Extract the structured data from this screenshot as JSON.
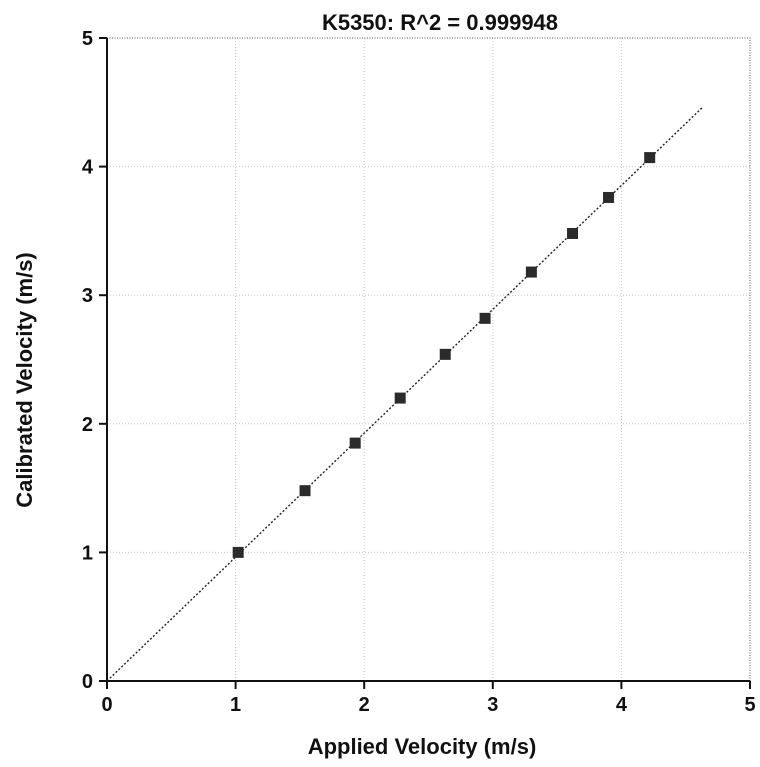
{
  "chart_data": {
    "type": "scatter",
    "title": "K5350: R^2 = 0.999948",
    "xlabel": "Applied Velocity (m/s)",
    "ylabel": "Calibrated Velocity (m/s)",
    "xlim": [
      0,
      5
    ],
    "ylim": [
      0,
      5
    ],
    "xticks": [
      "0",
      "1",
      "2",
      "3",
      "4",
      "5"
    ],
    "yticks": [
      "0",
      "1",
      "2",
      "3",
      "4",
      "5"
    ],
    "grid": true,
    "series": [
      {
        "x": [
          1.02,
          1.54,
          1.93,
          2.28,
          2.63,
          2.94,
          3.3,
          3.62,
          3.9,
          4.22
        ],
        "y": [
          1.0,
          1.48,
          1.85,
          2.2,
          2.54,
          2.82,
          3.18,
          3.48,
          3.76,
          4.07
        ]
      }
    ],
    "fit_line": {
      "x": [
        0,
        4.63
      ],
      "y": [
        0,
        4.46
      ]
    },
    "colors": {
      "marker": "#2b2b2b",
      "fit": "#222222",
      "grid": "#c9c9c9"
    }
  }
}
